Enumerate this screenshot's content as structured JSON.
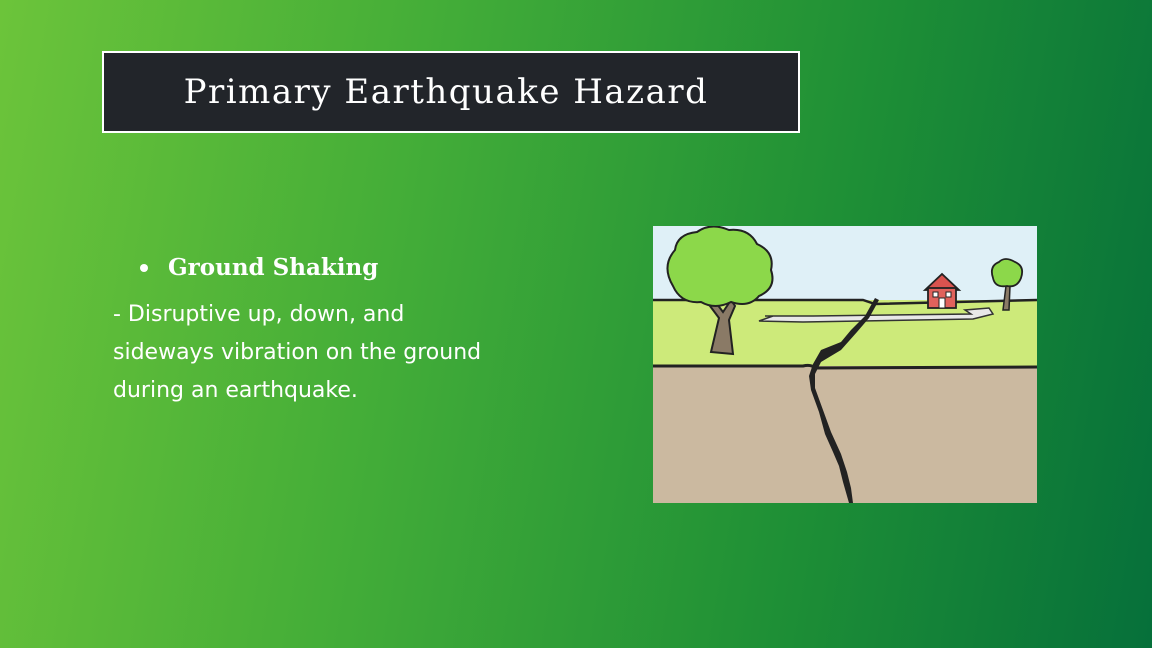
{
  "title": "Primary Earthquake Hazard",
  "bullet": {
    "heading": "Ground Shaking",
    "description": "- Disruptive up, down, and sideways vibration on the ground during an earthquake."
  },
  "illustration": {
    "icon": "earthquake-ground-crack-illustration",
    "colors": {
      "sky": "#dff0f7",
      "grass": "#cdea7a",
      "soil": "#cbb9a0",
      "tree": "#8cd84a",
      "house": "#d9534f"
    }
  }
}
